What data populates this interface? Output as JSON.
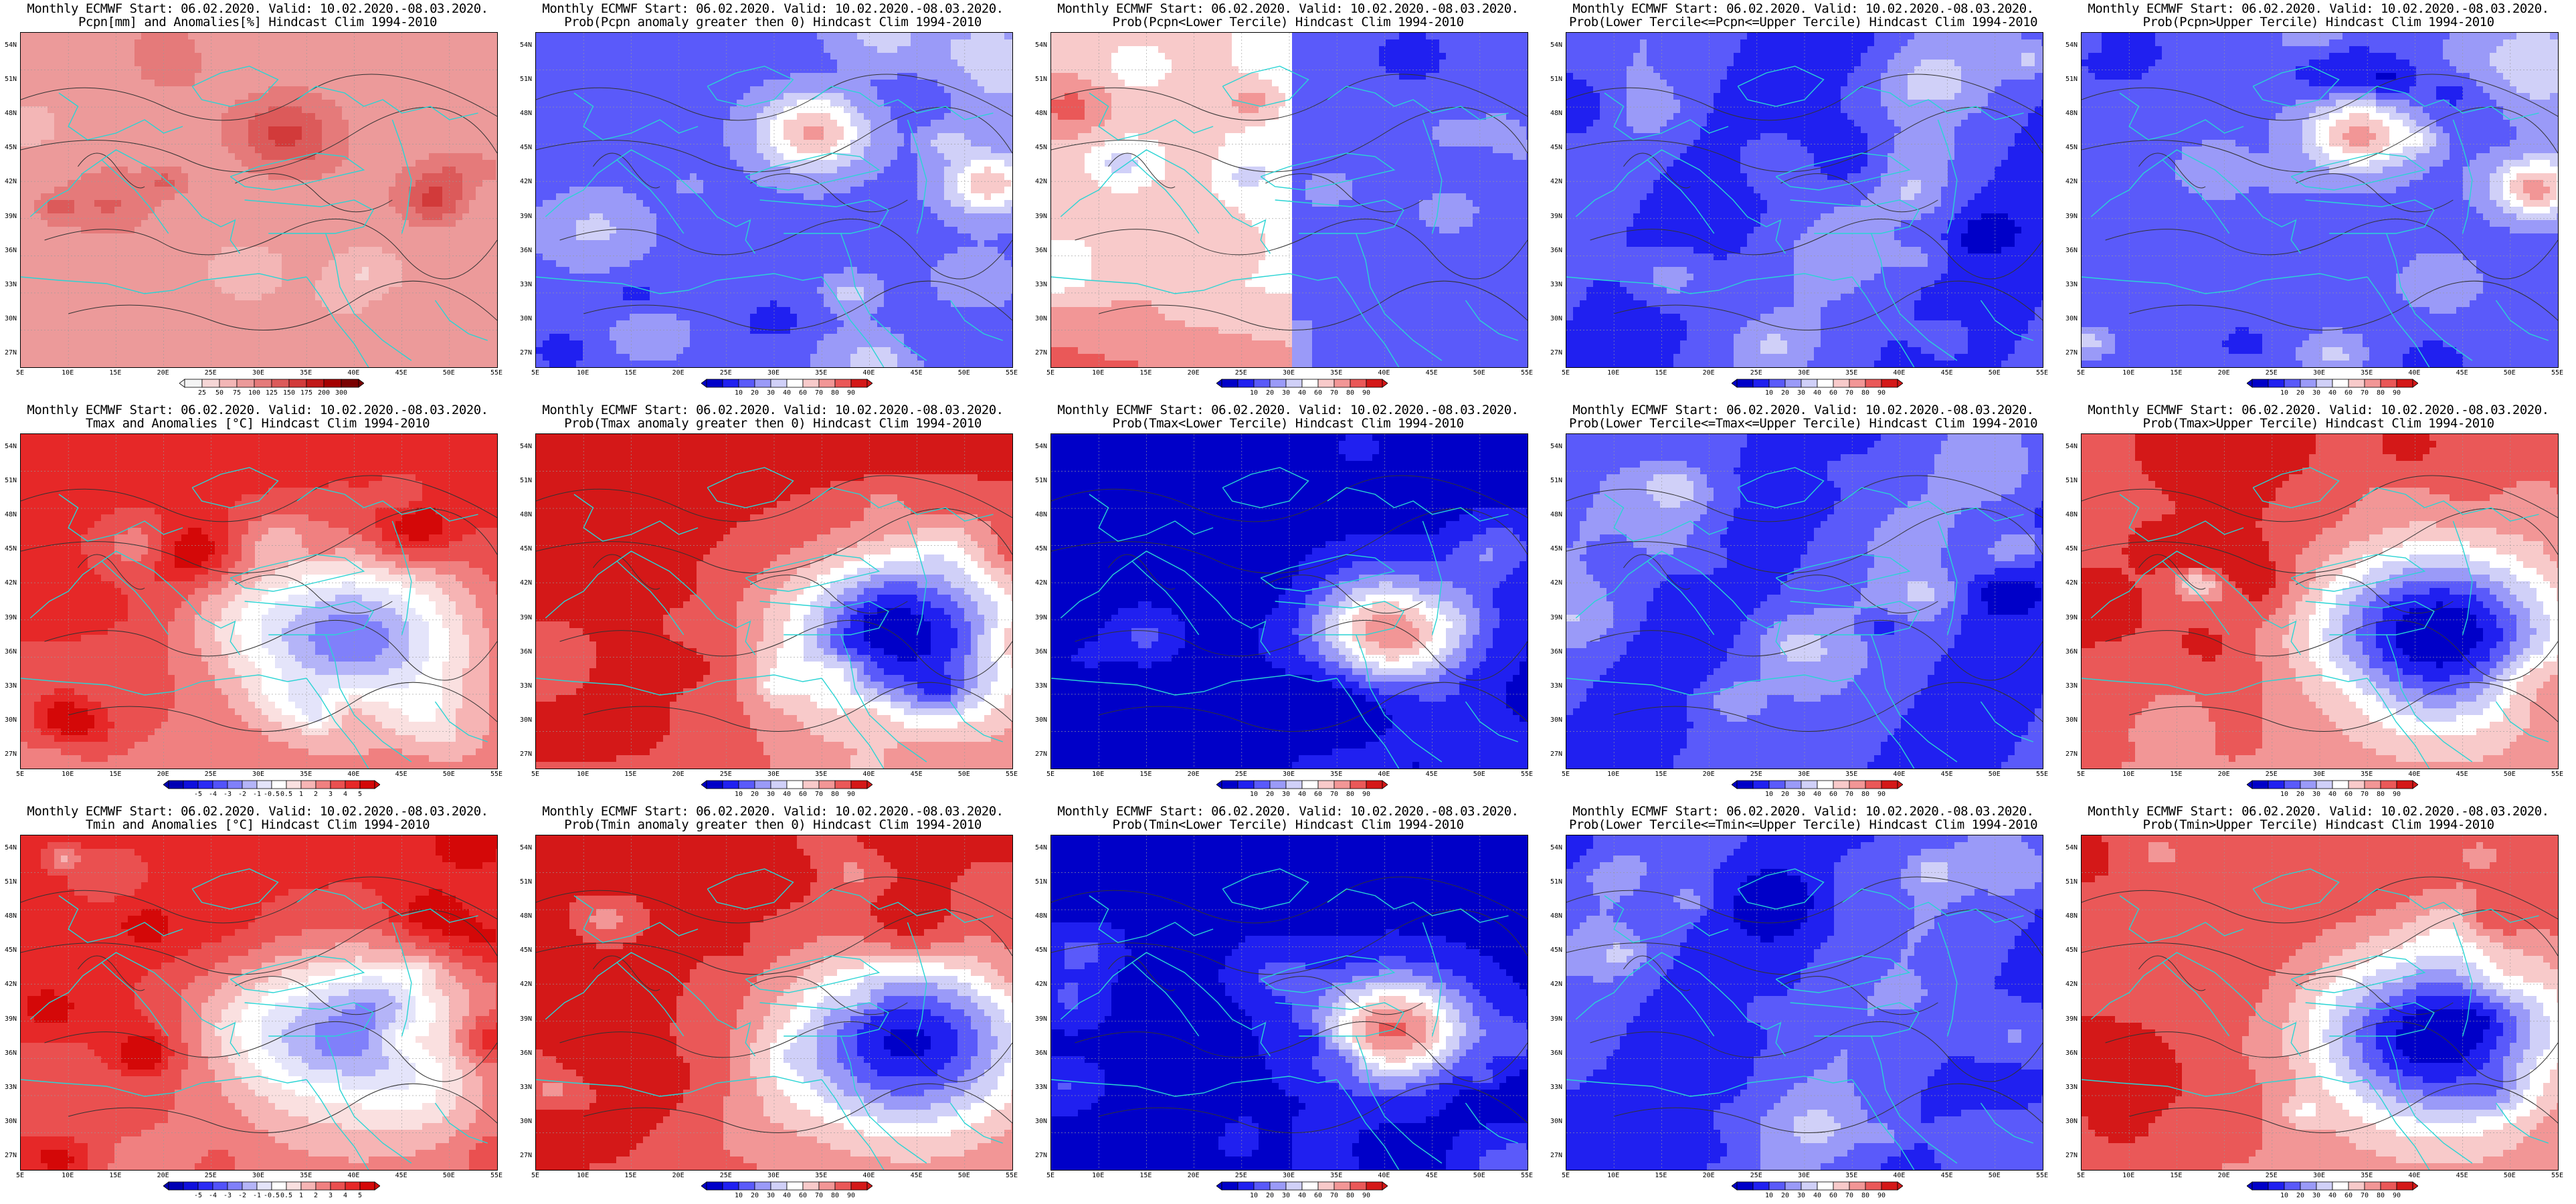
{
  "header_prefix": "Monthly ECMWF Start: 06.02.2020. Valid: 10.02.2020.-08.03.2020.",
  "lat_ticks": [
    "54N",
    "51N",
    "48N",
    "45N",
    "42N",
    "39N",
    "36N",
    "33N",
    "30N",
    "27N"
  ],
  "lon_ticks": [
    "5E",
    "10E",
    "15E",
    "20E",
    "25E",
    "30E",
    "35E",
    "40E",
    "45E",
    "50E",
    "55E"
  ],
  "colorbars": {
    "pcpn_anom": {
      "labels": [
        "25",
        "50",
        "75",
        "100",
        "125",
        "150",
        "175",
        "200",
        "300"
      ],
      "colors": [
        "#f4f4f4",
        "#f6d6d6",
        "#f3b6b6",
        "#ec9a9a",
        "#e57a7a",
        "#dc5a5a",
        "#d23a3a",
        "#c11818",
        "#a40000",
        "#7a0000"
      ]
    },
    "temp_anom": {
      "labels": [
        "-5",
        "-4",
        "-3",
        "-2",
        "-1",
        "-0.5",
        "0.5",
        "1",
        "2",
        "3",
        "4",
        "5"
      ],
      "colors": [
        "#0000b4",
        "#1010dc",
        "#2a2af4",
        "#5252fa",
        "#8080fa",
        "#b4b4f8",
        "#e4e4fa",
        "#ffffff",
        "#fae0e0",
        "#f6b4b4",
        "#f08080",
        "#ea5050",
        "#e62828",
        "#d40808"
      ]
    },
    "prob": {
      "labels": [
        "10",
        "20",
        "30",
        "40",
        "60",
        "70",
        "80",
        "90"
      ],
      "colors": [
        "#0000c8",
        "#2020f0",
        "#5a5afa",
        "#9a9af8",
        "#d0d0f8",
        "#ffffff",
        "#f8caca",
        "#f29696",
        "#ea5858",
        "#d41818"
      ]
    }
  },
  "panels": [
    {
      "id": "pcpn-anomalies",
      "subtitle": "Pcpn[mm] and Anomalies[%] Hindcast Clim 1994-2010",
      "colorbar": "pcpn_anom",
      "scheme": "pcpn"
    },
    {
      "id": "prob-pcpn-gt0",
      "subtitle": "Prob(Pcpn anomaly greater then 0) Hindcast Clim 1994-2010",
      "colorbar": "prob",
      "scheme": "pcpn_pos"
    },
    {
      "id": "prob-pcpn-lower",
      "subtitle": "Prob(Pcpn<Lower Tercile) Hindcast Clim 1994-2010",
      "colorbar": "prob",
      "scheme": "pcpn_low"
    },
    {
      "id": "prob-pcpn-middle",
      "subtitle": "Prob(Lower Tercile<=Pcpn<=Upper Tercile) Hindcast Clim 1994-2010",
      "colorbar": "prob",
      "scheme": "middle"
    },
    {
      "id": "prob-pcpn-upper",
      "subtitle": "Prob(Pcpn>Upper Tercile) Hindcast Clim 1994-2010",
      "colorbar": "prob",
      "scheme": "pcpn_pos"
    },
    {
      "id": "tmax-anomalies",
      "subtitle": "Tmax and Anomalies [°C] Hindcast Clim 1994-2010",
      "colorbar": "temp_anom",
      "scheme": "temp_anom"
    },
    {
      "id": "prob-tmax-gt0",
      "subtitle": "Prob(Tmax anomaly greater then 0) Hindcast Clim 1994-2010",
      "colorbar": "prob",
      "scheme": "temp_pos"
    },
    {
      "id": "prob-tmax-lower",
      "subtitle": "Prob(Tmax<Lower Tercile) Hindcast Clim 1994-2010",
      "colorbar": "prob",
      "scheme": "temp_low"
    },
    {
      "id": "prob-tmax-middle",
      "subtitle": "Prob(Lower Tercile<=Tmax<=Upper Tercile) Hindcast Clim 1994-2010",
      "colorbar": "prob",
      "scheme": "middle"
    },
    {
      "id": "prob-tmax-upper",
      "subtitle": "Prob(Tmax>Upper Tercile) Hindcast Clim 1994-2010",
      "colorbar": "prob",
      "scheme": "temp_up"
    },
    {
      "id": "tmin-anomalies",
      "subtitle": "Tmin and Anomalies [°C] Hindcast Clim 1994-2010",
      "colorbar": "temp_anom",
      "scheme": "temp_anom"
    },
    {
      "id": "prob-tmin-gt0",
      "subtitle": "Prob(Tmin anomaly greater then 0) Hindcast Clim 1994-2010",
      "colorbar": "prob",
      "scheme": "temp_pos"
    },
    {
      "id": "prob-tmin-lower",
      "subtitle": "Prob(Tmin<Lower Tercile) Hindcast Clim 1994-2010",
      "colorbar": "prob",
      "scheme": "temp_low"
    },
    {
      "id": "prob-tmin-middle",
      "subtitle": "Prob(Lower Tercile<=Tmin<=Upper Tercile) Hindcast Clim 1994-2010",
      "colorbar": "prob",
      "scheme": "middle"
    },
    {
      "id": "prob-tmin-upper",
      "subtitle": "Prob(Tmin>Upper Tercile) Hindcast Clim 1994-2010",
      "colorbar": "prob",
      "scheme": "temp_up"
    }
  ]
}
